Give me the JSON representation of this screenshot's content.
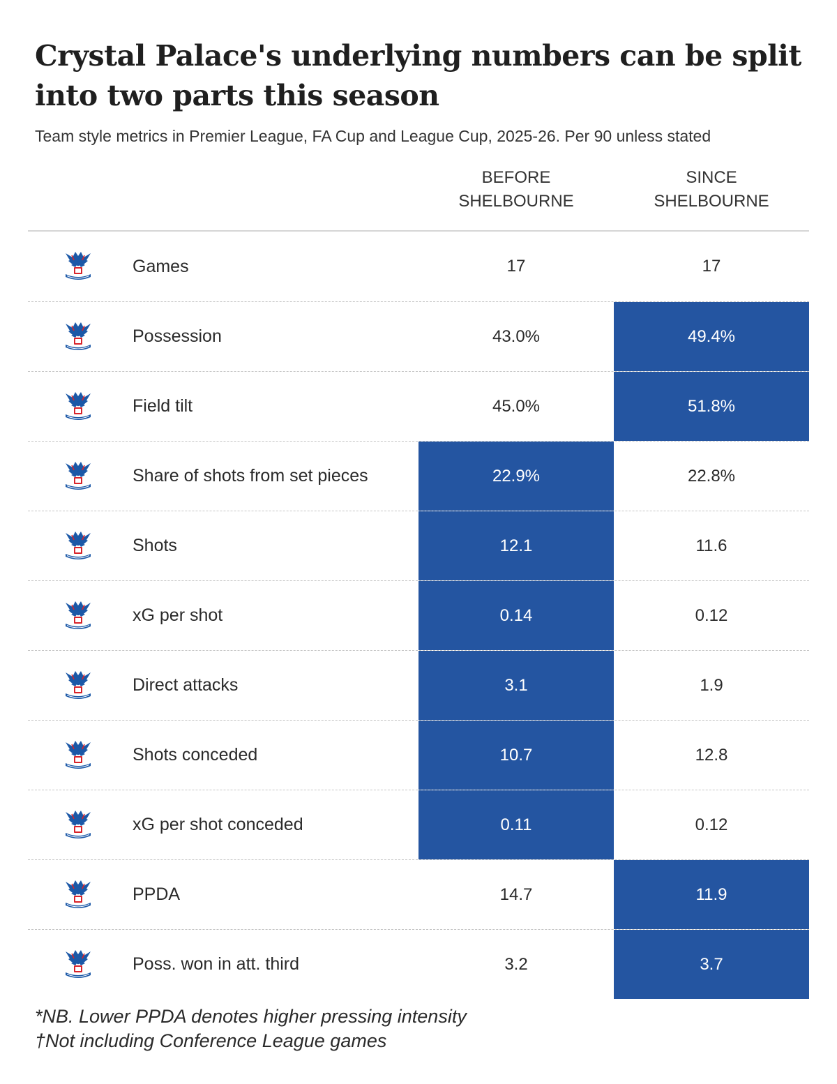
{
  "title": "Crystal Palace's underlying numbers can be split into two parts this season",
  "subtitle": "Team style metrics in Premier League, FA Cup and League Cup, 2025-26. Per 90 unless stated",
  "columns": {
    "before": [
      "BEFORE",
      "SHELBOURNE"
    ],
    "since": [
      "SINCE",
      "SHELBOURNE"
    ]
  },
  "highlight_color": "#2455a1",
  "row_icon": "crystal-palace-crest-icon",
  "chart_data": {
    "type": "table",
    "columns": [
      "BEFORE SHELBOURNE",
      "SINCE SHELBOURNE"
    ],
    "rows": [
      {
        "label": "Games",
        "before": "17",
        "since": "17",
        "highlight": "none"
      },
      {
        "label": "Possession",
        "before": "43.0%",
        "since": "49.4%",
        "highlight": "since"
      },
      {
        "label": "Field tilt",
        "before": "45.0%",
        "since": "51.8%",
        "highlight": "since"
      },
      {
        "label": "Share of shots from set pieces",
        "before": "22.9%",
        "since": "22.8%",
        "highlight": "before"
      },
      {
        "label": "Shots",
        "before": "12.1",
        "since": "11.6",
        "highlight": "before"
      },
      {
        "label": "xG per shot",
        "before": "0.14",
        "since": "0.12",
        "highlight": "before"
      },
      {
        "label": "Direct attacks",
        "before": "3.1",
        "since": "1.9",
        "highlight": "before"
      },
      {
        "label": "Shots conceded",
        "before": "10.7",
        "since": "12.8",
        "highlight": "before"
      },
      {
        "label": "xG per shot conceded",
        "before": "0.11",
        "since": "0.12",
        "highlight": "before"
      },
      {
        "label": "PPDA",
        "before": "14.7",
        "since": "11.9",
        "highlight": "since"
      },
      {
        "label": "Poss. won in att. third",
        "before": "3.2",
        "since": "3.7",
        "highlight": "since"
      }
    ]
  },
  "footnotes": [
    "*NB. Lower PPDA denotes higher pressing intensity",
    "†Not including Conference League games"
  ]
}
